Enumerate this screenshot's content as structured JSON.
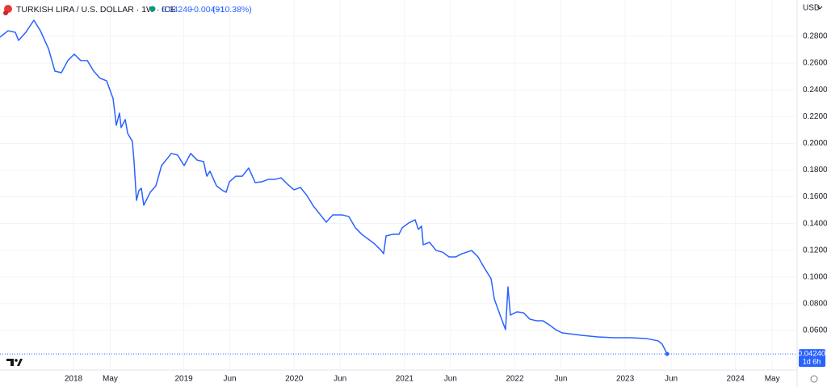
{
  "header": {
    "symbol": "TURKISH LIRA / U.S. DOLLAR · 1W · ICE",
    "last": "0.04240",
    "change": "−0.00491",
    "change_pct": "(−10.38%)",
    "currency": "USD"
  },
  "chart_data": {
    "type": "line",
    "last_value_label": "0.04240",
    "countdown": "1d 6h",
    "xlim": [
      2017.334,
      2024.544
    ],
    "ylim": [
      0.0304,
      0.3072
    ],
    "grid": true,
    "xticks": [
      {
        "value": 2018,
        "label": "2018"
      },
      {
        "value": 2018.333,
        "label": "May"
      },
      {
        "value": 2019,
        "label": "2019"
      },
      {
        "value": 2019.417,
        "label": "Jun"
      },
      {
        "value": 2020,
        "label": "2020"
      },
      {
        "value": 2020.417,
        "label": "Jun"
      },
      {
        "value": 2021,
        "label": "2021"
      },
      {
        "value": 2021.417,
        "label": "Jun"
      },
      {
        "value": 2022,
        "label": "2022"
      },
      {
        "value": 2022.417,
        "label": "Jun"
      },
      {
        "value": 2023,
        "label": "2023"
      },
      {
        "value": 2023.417,
        "label": "Jun"
      },
      {
        "value": 2024,
        "label": "2024"
      },
      {
        "value": 2024.333,
        "label": "May"
      }
    ],
    "yticks": [
      {
        "value": 0.06,
        "label": "0.06000"
      },
      {
        "value": 0.08,
        "label": "0.08000"
      },
      {
        "value": 0.1,
        "label": "0.10000"
      },
      {
        "value": 0.12,
        "label": "0.12000"
      },
      {
        "value": 0.14,
        "label": "0.14000"
      },
      {
        "value": 0.16,
        "label": "0.16000"
      },
      {
        "value": 0.18,
        "label": "0.18000"
      },
      {
        "value": 0.2,
        "label": "0.20000"
      },
      {
        "value": 0.22,
        "label": "0.22000"
      },
      {
        "value": 0.24,
        "label": "0.24000"
      },
      {
        "value": 0.26,
        "label": "0.26000"
      },
      {
        "value": 0.28,
        "label": "0.28000"
      }
    ],
    "series": [
      {
        "color": "#2962ff",
        "x": [
          2017.334,
          2017.407,
          2017.473,
          2017.502,
          2017.568,
          2017.641,
          2017.7,
          2017.773,
          2017.832,
          2017.89,
          2017.949,
          2018.007,
          2018.066,
          2018.125,
          2018.183,
          2018.242,
          2018.3,
          2018.359,
          2018.388,
          2018.417,
          2018.432,
          2018.469,
          2018.491,
          2018.534,
          2018.549,
          2018.571,
          2018.593,
          2018.615,
          2018.637,
          2018.696,
          2018.747,
          2018.798,
          2018.857,
          2018.886,
          2018.944,
          2019.003,
          2019.062,
          2019.12,
          2019.179,
          2019.208,
          2019.237,
          2019.296,
          2019.354,
          2019.384,
          2019.413,
          2019.471,
          2019.53,
          2019.588,
          2019.647,
          2019.706,
          2019.764,
          2019.823,
          2019.882,
          2019.94,
          2019.999,
          2020.057,
          2020.116,
          2020.174,
          2020.233,
          2020.291,
          2020.35,
          2020.438,
          2020.496,
          2020.555,
          2020.613,
          2020.672,
          2020.73,
          2020.789,
          2020.811,
          2020.833,
          2020.892,
          2020.95,
          2020.979,
          2021.038,
          2021.096,
          2021.126,
          2021.155,
          2021.17,
          2021.228,
          2021.287,
          2021.345,
          2021.404,
          2021.463,
          2021.521,
          2021.609,
          2021.667,
          2021.726,
          2021.785,
          2021.814,
          2021.872,
          2021.916,
          2021.938,
          2021.96,
          2022.018,
          2022.077,
          2022.136,
          2022.194,
          2022.253,
          2022.312,
          2022.37,
          2022.429,
          2022.487,
          2022.604,
          2022.751,
          2022.897,
          2023.044,
          2023.19,
          2023.3,
          2023.336,
          2023.38
        ],
        "values": [
          0.2794,
          0.2842,
          0.283,
          0.277,
          0.283,
          0.2921,
          0.2842,
          0.2709,
          0.254,
          0.2528,
          0.2619,
          0.2667,
          0.2619,
          0.2619,
          0.254,
          0.2486,
          0.2468,
          0.2335,
          0.2135,
          0.2226,
          0.2117,
          0.2178,
          0.2075,
          0.2014,
          0.1863,
          0.1573,
          0.1646,
          0.1664,
          0.1537,
          0.1634,
          0.1682,
          0.1833,
          0.1893,
          0.1924,
          0.1912,
          0.1833,
          0.1924,
          0.1875,
          0.1863,
          0.1754,
          0.1791,
          0.1682,
          0.1646,
          0.1634,
          0.1712,
          0.1754,
          0.1754,
          0.1815,
          0.1706,
          0.1712,
          0.173,
          0.173,
          0.1742,
          0.1694,
          0.1652,
          0.167,
          0.1609,
          0.1531,
          0.147,
          0.141,
          0.1464,
          0.1464,
          0.1452,
          0.1368,
          0.1319,
          0.1283,
          0.1247,
          0.1198,
          0.1174,
          0.1307,
          0.1319,
          0.1319,
          0.1368,
          0.1404,
          0.1428,
          0.1356,
          0.138,
          0.1241,
          0.1259,
          0.1198,
          0.1186,
          0.115,
          0.115,
          0.1174,
          0.1198,
          0.115,
          0.1065,
          0.0987,
          0.0836,
          0.0703,
          0.0606,
          0.0926,
          0.0715,
          0.0739,
          0.0733,
          0.0685,
          0.0673,
          0.0673,
          0.0642,
          0.0606,
          0.0582,
          0.0576,
          0.0564,
          0.0552,
          0.0546,
          0.0546,
          0.054,
          0.0522,
          0.0497,
          0.0424
        ]
      }
    ]
  }
}
